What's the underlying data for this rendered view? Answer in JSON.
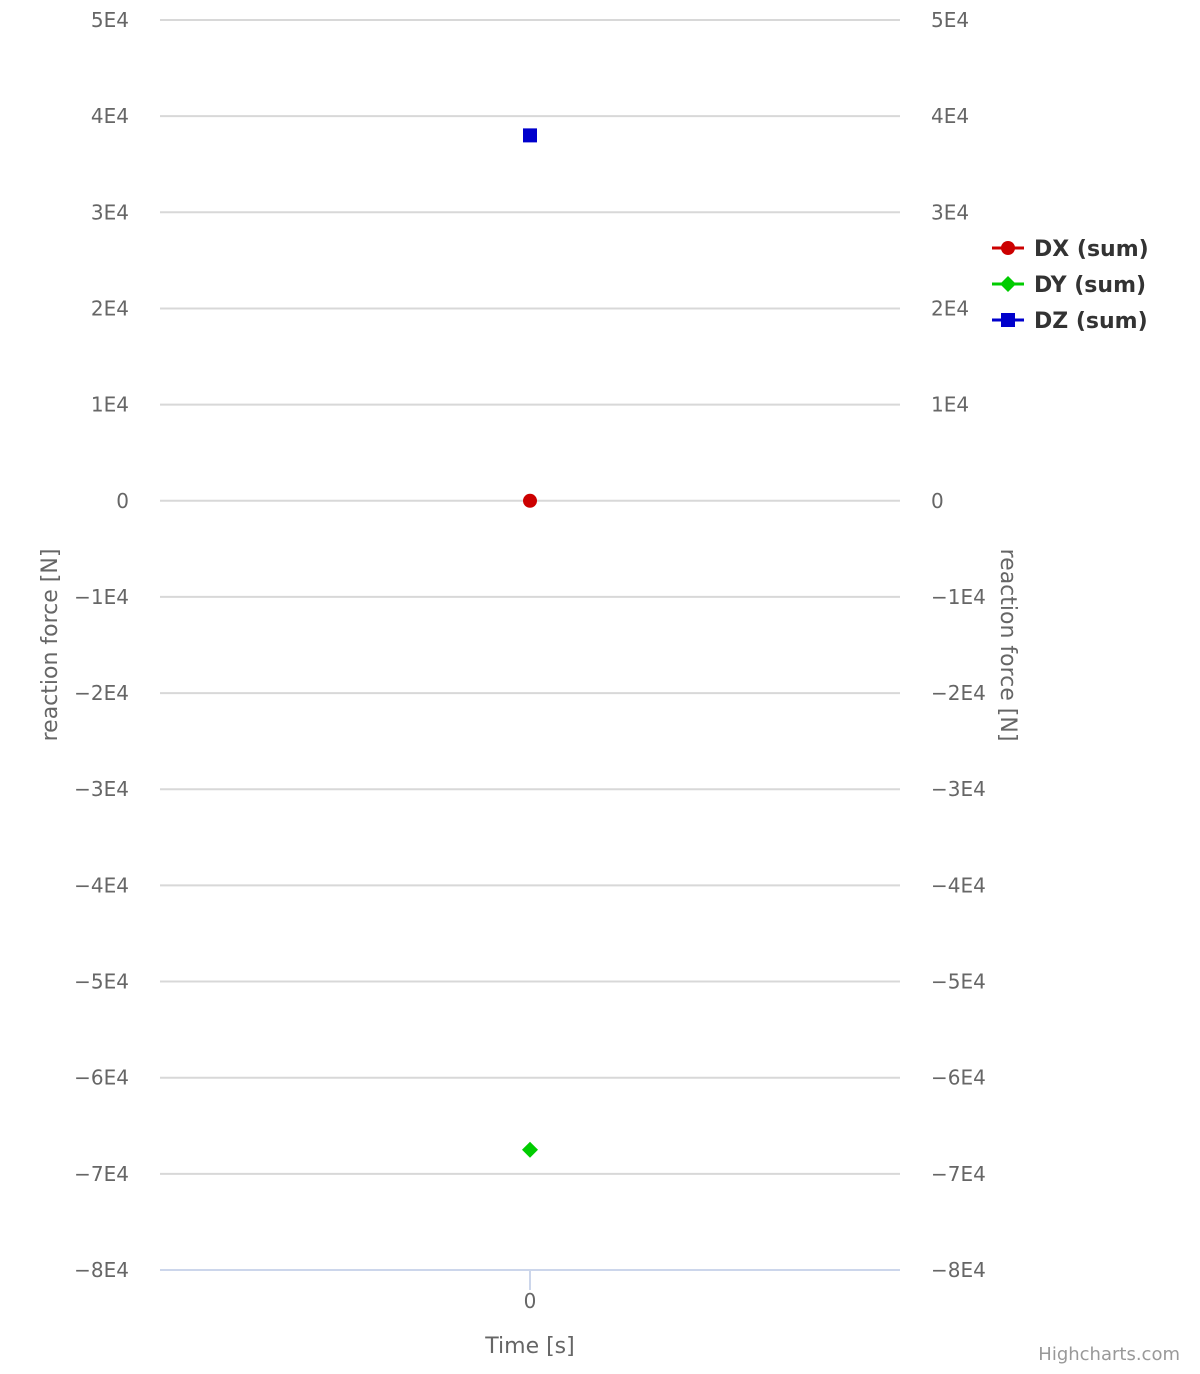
{
  "chart_data": {
    "type": "scatter",
    "x": [
      0
    ],
    "series": [
      {
        "name": "DX (sum)",
        "values": [
          0
        ],
        "color": "#cc0000",
        "marker": "circle"
      },
      {
        "name": "DY (sum)",
        "values": [
          -67500
        ],
        "color": "#00cc00",
        "marker": "diamond"
      },
      {
        "name": "DZ (sum)",
        "values": [
          38000
        ],
        "color": "#0000cc",
        "marker": "square"
      }
    ],
    "title": "",
    "xlabel": "Time [s]",
    "ylabel": "reaction force [N]",
    "ylabel_right": "reaction force [N]",
    "ylim": [
      -80000,
      50000
    ],
    "y_ticks": [
      50000,
      40000,
      30000,
      20000,
      10000,
      0,
      -10000,
      -20000,
      -30000,
      -40000,
      -50000,
      -60000,
      -70000,
      -80000
    ],
    "y_tick_labels": [
      "5E4",
      "4E4",
      "3E4",
      "2E4",
      "1E4",
      "0",
      "−1E4",
      "−2E4",
      "−3E4",
      "−4E4",
      "−5E4",
      "−6E4",
      "−7E4",
      "−8E4"
    ],
    "x_tick_labels": [
      "0"
    ],
    "grid": true,
    "legend_position": "right",
    "credits": "Highcharts.com"
  }
}
